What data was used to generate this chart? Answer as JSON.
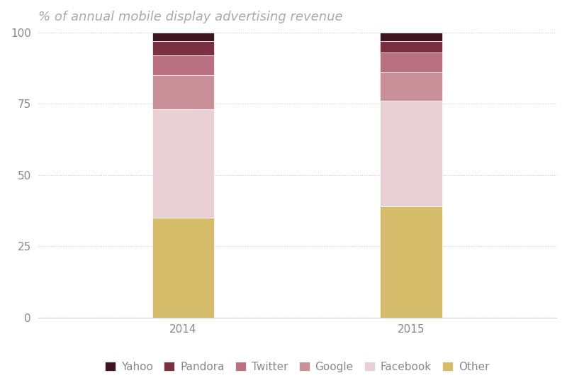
{
  "title": "% of annual mobile display advertising revenue",
  "years": [
    "2014",
    "2015"
  ],
  "segments": [
    {
      "label": "Other",
      "color": "#d4bc6a",
      "values": [
        35,
        39
      ]
    },
    {
      "label": "Facebook",
      "color": "#e8d0d5",
      "values": [
        38,
        37
      ]
    },
    {
      "label": "Google",
      "color": "#c9909a",
      "values": [
        12,
        10
      ]
    },
    {
      "label": "Twitter",
      "color": "#b97080",
      "values": [
        7,
        7
      ]
    },
    {
      "label": "Pandora",
      "color": "#7a3040",
      "values": [
        5,
        4
      ]
    },
    {
      "label": "Yahoo",
      "color": "#3d1520",
      "values": [
        3,
        3
      ]
    }
  ],
  "bar_width": 0.12,
  "bar_positions": [
    0.28,
    0.72
  ],
  "xlim": [
    0,
    1
  ],
  "ylim": [
    0,
    100
  ],
  "yticks": [
    0,
    25,
    50,
    75,
    100
  ],
  "background_color": "#ffffff",
  "title_fontsize": 13,
  "tick_fontsize": 11,
  "legend_fontsize": 11,
  "title_color": "#aaaaaa",
  "tick_color": "#888888",
  "grid_color": "#cccccc",
  "axis_color": "#cccccc"
}
